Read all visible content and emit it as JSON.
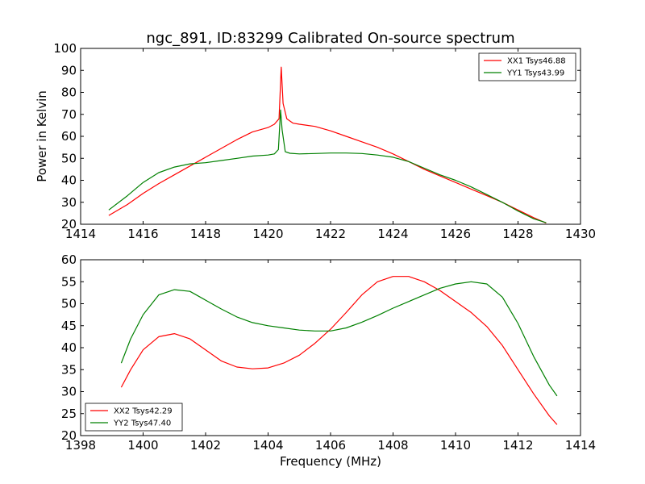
{
  "chart_data": [
    {
      "type": "line",
      "title": "ngc_891, ID:83299 Calibrated On-source spectrum",
      "xlabel": "",
      "ylabel": "Power in Kelvin",
      "xlim": [
        1414,
        1430
      ],
      "ylim": [
        20,
        100
      ],
      "xticks": [
        "1414",
        "1416",
        "1418",
        "1420",
        "1422",
        "1424",
        "1426",
        "1428",
        "1430"
      ],
      "yticks": [
        "20",
        "30",
        "40",
        "50",
        "60",
        "70",
        "80",
        "90",
        "100"
      ],
      "legend_placement": "top-right",
      "series": [
        {
          "name": "XX1 Tsys46.88",
          "color": "#ff0000",
          "x": [
            1414.9,
            1415.5,
            1416.0,
            1416.5,
            1417.0,
            1417.5,
            1418.0,
            1418.5,
            1419.0,
            1419.5,
            1420.0,
            1420.2,
            1420.35,
            1420.42,
            1420.48,
            1420.6,
            1420.8,
            1421.0,
            1421.5,
            1422.0,
            1422.5,
            1423.0,
            1423.5,
            1424.0,
            1424.5,
            1425.0,
            1425.5,
            1426.0,
            1426.5,
            1427.0,
            1427.5,
            1428.0,
            1428.5,
            1428.9
          ],
          "y": [
            24,
            29,
            34,
            38.5,
            42.5,
            46.5,
            50.5,
            54.5,
            58.5,
            62,
            64,
            65.5,
            68,
            91.5,
            75,
            68,
            66,
            65.5,
            64.5,
            62.5,
            60,
            57.5,
            55,
            52,
            48.5,
            45,
            42,
            39,
            36,
            33,
            30,
            26.5,
            23,
            20.5
          ]
        },
        {
          "name": "YY1 Tsys43.99",
          "color": "#008000",
          "x": [
            1414.9,
            1415.5,
            1416.0,
            1416.5,
            1417.0,
            1417.5,
            1418.0,
            1418.5,
            1419.0,
            1419.5,
            1420.0,
            1420.2,
            1420.33,
            1420.4,
            1420.45,
            1420.55,
            1420.7,
            1421.0,
            1421.5,
            1422.0,
            1422.5,
            1423.0,
            1423.5,
            1424.0,
            1424.5,
            1425.0,
            1425.5,
            1426.0,
            1426.5,
            1427.0,
            1427.5,
            1428.0,
            1428.5,
            1428.9
          ],
          "y": [
            26.5,
            33,
            39,
            43.5,
            46,
            47.5,
            48,
            49,
            50,
            51,
            51.5,
            52,
            54,
            72,
            63,
            53,
            52.3,
            52,
            52.2,
            52.4,
            52.4,
            52.2,
            51.5,
            50.5,
            48.5,
            45.5,
            42.5,
            40,
            37,
            33.5,
            30,
            26,
            22.5,
            20.7
          ]
        }
      ]
    },
    {
      "type": "line",
      "title": "",
      "xlabel": "Frequency (MHz)",
      "ylabel": "",
      "xlim": [
        1398,
        1414
      ],
      "ylim": [
        20,
        60
      ],
      "xticks": [
        "1398",
        "1400",
        "1402",
        "1404",
        "1406",
        "1408",
        "1410",
        "1412",
        "1414"
      ],
      "yticks": [
        "20",
        "25",
        "30",
        "35",
        "40",
        "45",
        "50",
        "55",
        "60"
      ],
      "legend_placement": "bottom-left",
      "series": [
        {
          "name": "XX2 Tsys42.29",
          "color": "#ff0000",
          "x": [
            1399.3,
            1399.6,
            1400.0,
            1400.5,
            1401.0,
            1401.5,
            1402.0,
            1402.5,
            1403.0,
            1403.5,
            1404.0,
            1404.5,
            1405.0,
            1405.5,
            1406.0,
            1406.5,
            1407.0,
            1407.5,
            1408.0,
            1408.5,
            1409.0,
            1409.5,
            1410.0,
            1410.5,
            1411.0,
            1411.5,
            1412.0,
            1412.5,
            1413.0,
            1413.25
          ],
          "y": [
            31,
            35,
            39.5,
            42.5,
            43.2,
            42,
            39.5,
            37,
            35.6,
            35.2,
            35.4,
            36.5,
            38.3,
            41,
            44.2,
            48,
            52,
            55,
            56.2,
            56.2,
            55,
            53,
            50.5,
            48,
            44.8,
            40.5,
            35,
            29.5,
            24.5,
            22.5
          ]
        },
        {
          "name": "YY2 Tsys47.40",
          "color": "#008000",
          "x": [
            1399.3,
            1399.6,
            1400.0,
            1400.5,
            1401.0,
            1401.5,
            1402.0,
            1402.5,
            1403.0,
            1403.5,
            1404.0,
            1404.5,
            1405.0,
            1405.5,
            1406.0,
            1406.5,
            1407.0,
            1407.5,
            1408.0,
            1408.5,
            1409.0,
            1409.5,
            1410.0,
            1410.5,
            1411.0,
            1411.5,
            1412.0,
            1412.5,
            1413.0,
            1413.25
          ],
          "y": [
            36.5,
            42,
            47.5,
            52,
            53.2,
            52.8,
            50.8,
            48.8,
            47,
            45.7,
            45,
            44.5,
            44,
            43.8,
            43.8,
            44.5,
            45.8,
            47.3,
            49,
            50.5,
            52,
            53.5,
            54.5,
            55,
            54.5,
            51.5,
            45.5,
            38,
            31.5,
            29
          ]
        }
      ]
    }
  ]
}
